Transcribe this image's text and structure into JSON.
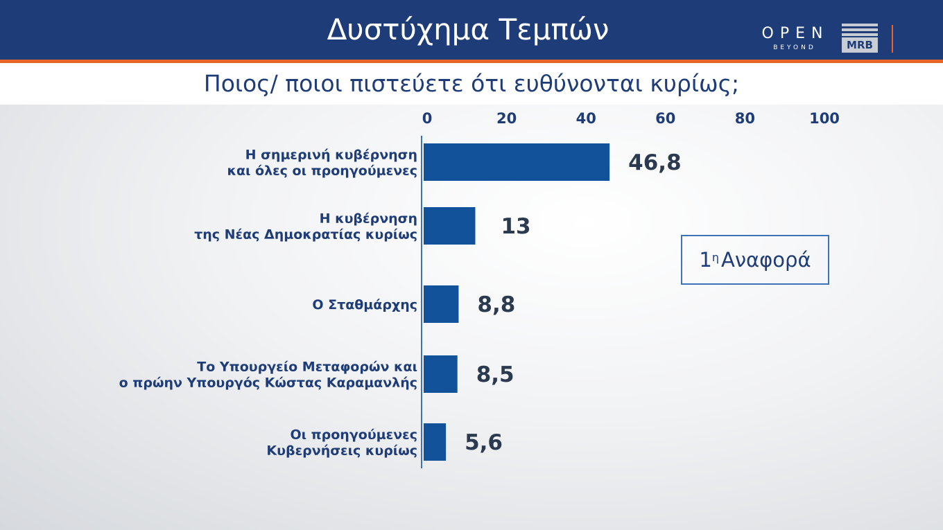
{
  "header": {
    "title": "Δυστύχημα Τεμπών"
  },
  "logos": {
    "open_text": "OPEN",
    "open_sub": "BEYOND",
    "mrb": "MRB"
  },
  "subtitle": "Ποιος/ ποιοι πιστεύετε ότι ευθύνονται κυρίως;",
  "note": {
    "main": "1",
    "sup": "η",
    "text": "Αναφορά"
  },
  "chart_data": {
    "type": "bar",
    "orientation": "horizontal",
    "xlim": [
      0,
      100
    ],
    "ticks": [
      "0",
      "20",
      "40",
      "60",
      "80",
      "100"
    ],
    "categories": [
      [
        "Η σημερινή κυβέρνηση",
        "και όλες οι προηγούμενες"
      ],
      [
        "Η κυβέρνηση",
        "της Νέας Δημοκρατίας κυρίως"
      ],
      [
        "Ο Σταθμάρχης"
      ],
      [
        "Το Υπουργείο Μεταφορών και",
        "ο πρώην Υπουργός Κώστας Καραμανλής"
      ],
      [
        "Οι προηγούμενες",
        "Κυβερνήσεις κυρίως"
      ]
    ],
    "values": [
      46.8,
      13,
      8.8,
      8.5,
      5.6
    ],
    "value_labels": [
      "46,8",
      "13",
      "8,8",
      "8,5",
      "5,6"
    ],
    "bar_color": "#12529a",
    "grid": false
  }
}
